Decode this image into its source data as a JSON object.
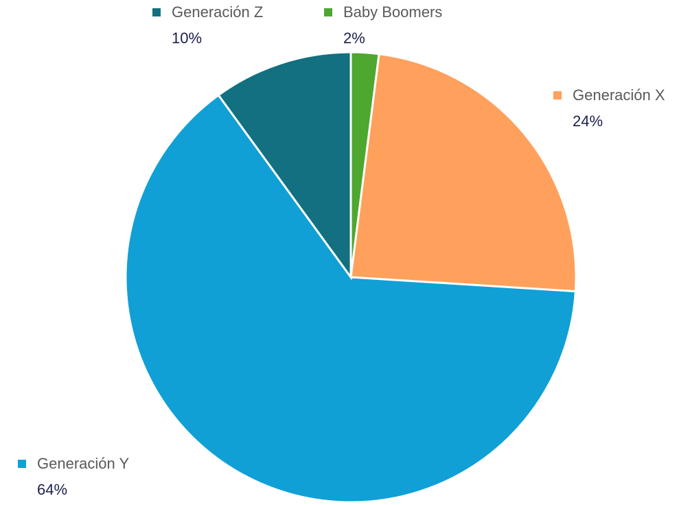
{
  "chart_data": {
    "type": "pie",
    "categories": [
      "Baby Boomers",
      "Generación X",
      "Generación Y",
      "Generación Z"
    ],
    "values": [
      2,
      24,
      64,
      10
    ],
    "value_labels": [
      "2%",
      "24%",
      "64%",
      "10%"
    ],
    "colors": [
      "#4ea72e",
      "#ffa05c",
      "#10a0d6",
      "#127080"
    ]
  }
}
